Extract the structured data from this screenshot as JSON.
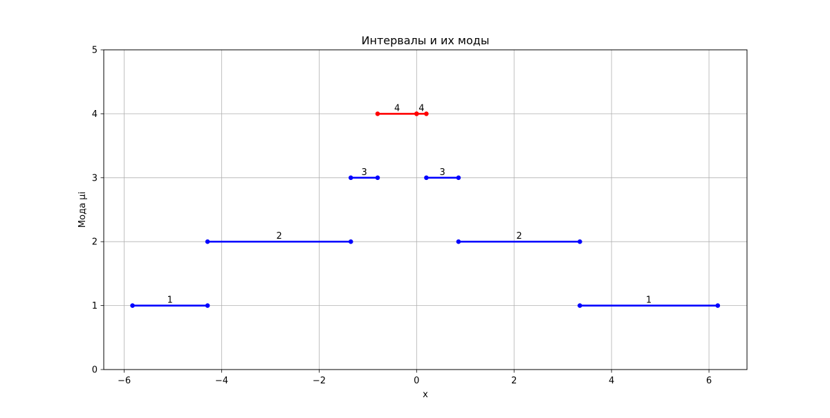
{
  "chart_data": {
    "type": "line",
    "title": "Интервалы и их моды",
    "xlabel": "x",
    "ylabel": "Мода μi",
    "xlim": [
      -6.42,
      6.78
    ],
    "ylim": [
      0,
      5
    ],
    "xticks": [
      -6,
      -4,
      -2,
      0,
      2,
      4,
      6
    ],
    "xtick_labels": [
      "−6",
      "−4",
      "−2",
      "0",
      "2",
      "4",
      "6"
    ],
    "yticks": [
      0,
      1,
      2,
      3,
      4,
      5
    ],
    "ytick_labels": [
      "0",
      "1",
      "2",
      "3",
      "4",
      "5"
    ],
    "grid": true,
    "colors": {
      "normal": "#0000ff",
      "highlight": "#ff0000",
      "grid": "#b0b0b0",
      "axes": "#000000"
    },
    "intervals": [
      {
        "x": [
          -5.83,
          -4.29
        ],
        "mode": 1,
        "label": "1",
        "color": "normal"
      },
      {
        "x": [
          -4.29,
          -1.35
        ],
        "mode": 2,
        "label": "2",
        "color": "normal"
      },
      {
        "x": [
          -1.35,
          -0.8
        ],
        "mode": 3,
        "label": "3",
        "color": "normal"
      },
      {
        "x": [
          -0.8,
          0.0
        ],
        "mode": 4,
        "label": "4",
        "color": "highlight"
      },
      {
        "x": [
          0.0,
          0.2
        ],
        "mode": 4,
        "label": "4",
        "color": "highlight"
      },
      {
        "x": [
          0.2,
          0.86
        ],
        "mode": 3,
        "label": "3",
        "color": "normal"
      },
      {
        "x": [
          0.86,
          3.35
        ],
        "mode": 2,
        "label": "2",
        "color": "normal"
      },
      {
        "x": [
          3.35,
          6.18
        ],
        "mode": 1,
        "label": "1",
        "color": "normal"
      }
    ]
  }
}
